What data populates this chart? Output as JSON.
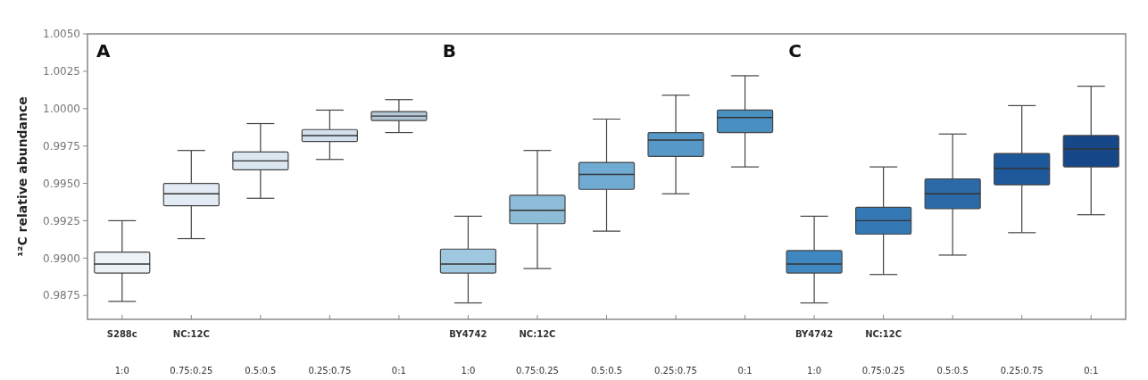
{
  "chart_data": {
    "type": "box",
    "ylabel": "¹²C relative abundance",
    "annotations": [
      "A",
      "B",
      "C"
    ],
    "categories": [
      "S288c\n1:0",
      "NC:12C\n0.75:0.25",
      "0.5:0.5",
      "0.25:0.75",
      "0:1",
      "BY4742\n1:0",
      "NC:12C\n0.75:0.25",
      "0.5:0.5",
      "0.25:0.75",
      "0:1",
      "BY4742\n1:0",
      "NC:12C\n0.75:0.25",
      "0.5:0.5",
      "0.25:0.75",
      "0:1"
    ],
    "boxes": [
      {
        "low": 0.9871,
        "q1": 0.989,
        "median": 0.9896,
        "q3": 0.9904,
        "high": 0.9925
      },
      {
        "low": 0.9913,
        "q1": 0.9935,
        "median": 0.9943,
        "q3": 0.995,
        "high": 0.9972
      },
      {
        "low": 0.994,
        "q1": 0.9959,
        "median": 0.9965,
        "q3": 0.9971,
        "high": 0.999
      },
      {
        "low": 0.9966,
        "q1": 0.9978,
        "median": 0.9982,
        "q3": 0.9986,
        "high": 0.9999
      },
      {
        "low": 0.9984,
        "q1": 0.9992,
        "median": 0.9995,
        "q3": 0.9998,
        "high": 1.0006
      },
      {
        "low": 0.987,
        "q1": 0.989,
        "median": 0.9896,
        "q3": 0.9906,
        "high": 0.9928
      },
      {
        "low": 0.9893,
        "q1": 0.9923,
        "median": 0.9932,
        "q3": 0.9942,
        "high": 0.9972
      },
      {
        "low": 0.9918,
        "q1": 0.9946,
        "median": 0.9956,
        "q3": 0.9964,
        "high": 0.9993
      },
      {
        "low": 0.9943,
        "q1": 0.9968,
        "median": 0.9979,
        "q3": 0.9984,
        "high": 1.0009
      },
      {
        "low": 0.9961,
        "q1": 0.9984,
        "median": 0.9994,
        "q3": 0.9999,
        "high": 1.0022
      },
      {
        "low": 0.987,
        "q1": 0.989,
        "median": 0.9896,
        "q3": 0.9905,
        "high": 0.9928
      },
      {
        "low": 0.9889,
        "q1": 0.9916,
        "median": 0.9925,
        "q3": 0.9934,
        "high": 0.9961
      },
      {
        "low": 0.9902,
        "q1": 0.9933,
        "median": 0.9943,
        "q3": 0.9953,
        "high": 0.9983
      },
      {
        "low": 0.9917,
        "q1": 0.9949,
        "median": 0.996,
        "q3": 0.997,
        "high": 1.0002
      },
      {
        "low": 0.9929,
        "q1": 0.9961,
        "median": 0.9973,
        "q3": 0.9982,
        "high": 1.0015
      }
    ],
    "colors": [
      "#edf2f8",
      "#e3ebf4",
      "#dbe6f1",
      "#d3e0ee",
      "#b4c7d6",
      "#9fc8e0",
      "#8dbcd9",
      "#70abd3",
      "#5699c8",
      "#4a8fc1",
      "#3f87c0",
      "#3479b5",
      "#2b6aa7",
      "#1d589b",
      "#154789"
    ],
    "ylim": [
      0.9859,
      1.005
    ],
    "yticks": [
      {
        "value": 0.9875,
        "label": "0.9875"
      },
      {
        "value": 0.99,
        "label": "0.9900"
      },
      {
        "value": 0.9925,
        "label": "0.9925"
      },
      {
        "value": 0.995,
        "label": "0.9950"
      },
      {
        "value": 0.9975,
        "label": "0.9975"
      },
      {
        "value": 1,
        "label": "1.0000"
      },
      {
        "value": 1.0025,
        "label": "1.0025"
      },
      {
        "value": 1.005,
        "label": "1.0050"
      }
    ],
    "grid": false
  }
}
